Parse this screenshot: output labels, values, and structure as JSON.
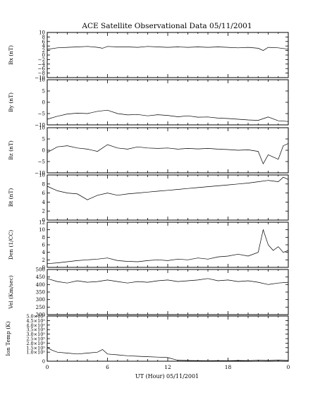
{
  "figure": {
    "title": "ACE Satellite Observational Data   05/11/2001",
    "xlabel": "UT (Hour)  05/11/2001",
    "colors": {
      "background": "#ffffff",
      "ink": "#000000"
    }
  },
  "chart_data": [
    {
      "type": "line",
      "ylabel": "Bx (nT)",
      "xlim": [
        0,
        24
      ],
      "ylim": [
        -10,
        10
      ],
      "yticks": [
        -10,
        -8,
        -6,
        -4,
        -2,
        0,
        2,
        4,
        6,
        8,
        10
      ],
      "ytick_labels": [
        "−10",
        "−8",
        "−6",
        "−4",
        "−2",
        "0",
        "2",
        "4",
        "6",
        "8",
        "10"
      ],
      "xtick_labels": [],
      "series": [
        {
          "x": [
            0,
            1,
            2,
            3,
            4,
            5,
            5.5,
            6,
            7,
            8,
            9,
            10,
            11,
            12,
            13,
            14,
            15,
            16,
            17,
            18,
            19,
            20,
            21,
            21.5,
            22,
            23,
            24
          ],
          "y": [
            2.5,
            3.2,
            3.4,
            3.6,
            3.8,
            3.4,
            3.0,
            3.8,
            3.6,
            3.6,
            3.4,
            3.8,
            3.6,
            3.4,
            3.6,
            3.4,
            3.6,
            3.4,
            3.6,
            3.4,
            3.2,
            3.4,
            3.0,
            2.0,
            3.4,
            3.2,
            2.6
          ]
        }
      ]
    },
    {
      "type": "line",
      "ylabel": "By (nT)",
      "xlim": [
        0,
        24
      ],
      "ylim": [
        -10,
        10
      ],
      "yticks": [
        -10,
        -5,
        0,
        5,
        10
      ],
      "ytick_labels": [
        "−10",
        "−5",
        "0",
        "5",
        "10"
      ],
      "xtick_labels": [],
      "series": [
        {
          "x": [
            0,
            1,
            2,
            3,
            4,
            5,
            6,
            7,
            8,
            9,
            10,
            11,
            12,
            13,
            14,
            15,
            16,
            17,
            18,
            19,
            20,
            21,
            22,
            23,
            24
          ],
          "y": [
            -7.5,
            -6.2,
            -5.2,
            -4.8,
            -5.0,
            -4.0,
            -3.5,
            -5.0,
            -5.6,
            -5.4,
            -6.0,
            -5.5,
            -5.8,
            -6.4,
            -6.0,
            -6.6,
            -6.5,
            -7.0,
            -7.2,
            -7.5,
            -7.8,
            -8.0,
            -6.5,
            -8.2,
            -8.5
          ]
        }
      ]
    },
    {
      "type": "line",
      "ylabel": "Bz (nT)",
      "xlim": [
        0,
        24
      ],
      "ylim": [
        -10,
        10
      ],
      "yticks": [
        -10,
        -5,
        0,
        5,
        10
      ],
      "ytick_labels": [
        "−10",
        "−5",
        "0",
        "5",
        "10"
      ],
      "xtick_labels": [],
      "series": [
        {
          "x": [
            0,
            1,
            2,
            3,
            4,
            5,
            6,
            7,
            8,
            9,
            10,
            11,
            12,
            13,
            14,
            15,
            16,
            17,
            18,
            19,
            20,
            21,
            21.5,
            22,
            22.5,
            23,
            23.5,
            24
          ],
          "y": [
            -1.0,
            1.5,
            2.0,
            1.0,
            0.5,
            -0.5,
            2.5,
            1.0,
            0.5,
            1.5,
            1.0,
            0.8,
            1.0,
            0.5,
            0.8,
            0.6,
            0.8,
            0.5,
            0.3,
            0.0,
            0.2,
            -0.5,
            -6.0,
            -2.0,
            -3.0,
            -4.0,
            2.0,
            3.0
          ]
        }
      ]
    },
    {
      "type": "line",
      "ylabel": "Bt (nT)",
      "xlim": [
        0,
        24
      ],
      "ylim": [
        0,
        10
      ],
      "yticks": [
        0,
        2,
        4,
        6,
        8,
        10
      ],
      "ytick_labels": [
        "0",
        "2",
        "4",
        "6",
        "8",
        "10"
      ],
      "xtick_labels": [],
      "series": [
        {
          "x": [
            0,
            1,
            2,
            3,
            4,
            5,
            6,
            7,
            8,
            9,
            10,
            11,
            12,
            13,
            14,
            15,
            16,
            17,
            18,
            19,
            20,
            21,
            22,
            23,
            23.5,
            24
          ],
          "y": [
            7.5,
            6.5,
            6.0,
            5.8,
            4.5,
            5.5,
            6.0,
            5.5,
            5.8,
            6.0,
            6.2,
            6.4,
            6.6,
            6.8,
            7.0,
            7.2,
            7.4,
            7.6,
            7.8,
            8.0,
            8.2,
            8.5,
            8.8,
            8.5,
            9.5,
            9.0
          ]
        }
      ]
    },
    {
      "type": "line",
      "ylabel": "Den (1/CC)",
      "xlim": [
        0,
        24
      ],
      "ylim": [
        0,
        12
      ],
      "yticks": [
        0,
        2,
        4,
        6,
        8,
        10,
        12
      ],
      "ytick_labels": [
        "0",
        "2",
        "4",
        "6",
        "8",
        "10",
        "12"
      ],
      "xtick_labels": [],
      "series": [
        {
          "x": [
            0,
            1,
            2,
            3,
            4,
            5,
            6,
            7,
            8,
            9,
            10,
            11,
            12,
            13,
            14,
            15,
            16,
            17,
            18,
            19,
            20,
            21,
            21.5,
            22,
            22.5,
            23,
            23.5,
            24
          ],
          "y": [
            1.0,
            1.2,
            1.5,
            1.8,
            2.0,
            2.2,
            2.5,
            1.8,
            1.6,
            1.5,
            1.8,
            2.0,
            1.8,
            2.2,
            2.0,
            2.5,
            2.2,
            2.8,
            3.0,
            3.5,
            3.0,
            4.0,
            10.0,
            6.0,
            4.5,
            5.5,
            4.0,
            4.5
          ]
        }
      ]
    },
    {
      "type": "line",
      "ylabel": "Vel (Km/sec)",
      "xlim": [
        0,
        24
      ],
      "ylim": [
        200,
        500
      ],
      "yticks": [
        200,
        250,
        300,
        350,
        400,
        450,
        500
      ],
      "ytick_labels": [
        "200",
        "250",
        "300",
        "350",
        "400",
        "450",
        "500"
      ],
      "xtick_labels": [],
      "series": [
        {
          "x": [
            0,
            1,
            2,
            3,
            4,
            5,
            6,
            7,
            8,
            9,
            10,
            11,
            12,
            13,
            14,
            15,
            16,
            17,
            18,
            19,
            20,
            21,
            22,
            23,
            24
          ],
          "y": [
            440,
            420,
            410,
            425,
            415,
            420,
            430,
            420,
            410,
            420,
            415,
            425,
            430,
            420,
            425,
            430,
            440,
            425,
            430,
            420,
            425,
            415,
            400,
            410,
            415
          ]
        }
      ]
    },
    {
      "type": "line",
      "ylabel": "Ion Temp (K)",
      "xlim": [
        0,
        24
      ],
      "ylim": [
        0,
        500000
      ],
      "yticks": [
        0,
        100000,
        150000,
        200000,
        250000,
        300000,
        350000,
        400000,
        450000,
        500000
      ],
      "ytick_labels": [
        "0",
        "1.0×10⁵",
        "1.5×10⁵",
        "2.0×10⁵",
        "2.5×10⁵",
        "3.0×10⁵",
        "3.5×10⁵",
        "4.0×10⁵",
        "4.5×10⁵",
        "5.0×10⁵"
      ],
      "xtick_labels": [
        "0",
        "6",
        "12",
        "18",
        "0"
      ],
      "series": [
        {
          "x": [
            0,
            0.5,
            1,
            2,
            3,
            4,
            5,
            5.5,
            6,
            7,
            8,
            9,
            10,
            11,
            12,
            13,
            14,
            15,
            16,
            17,
            18,
            19,
            20,
            21,
            22,
            23,
            24
          ],
          "y": [
            150000,
            120000,
            100000,
            90000,
            80000,
            90000,
            100000,
            130000,
            80000,
            70000,
            60000,
            55000,
            50000,
            45000,
            40000,
            10000,
            8000,
            6000,
            5000,
            6000,
            5000,
            8000,
            6000,
            10000,
            8000,
            12000,
            8000
          ]
        }
      ]
    }
  ]
}
